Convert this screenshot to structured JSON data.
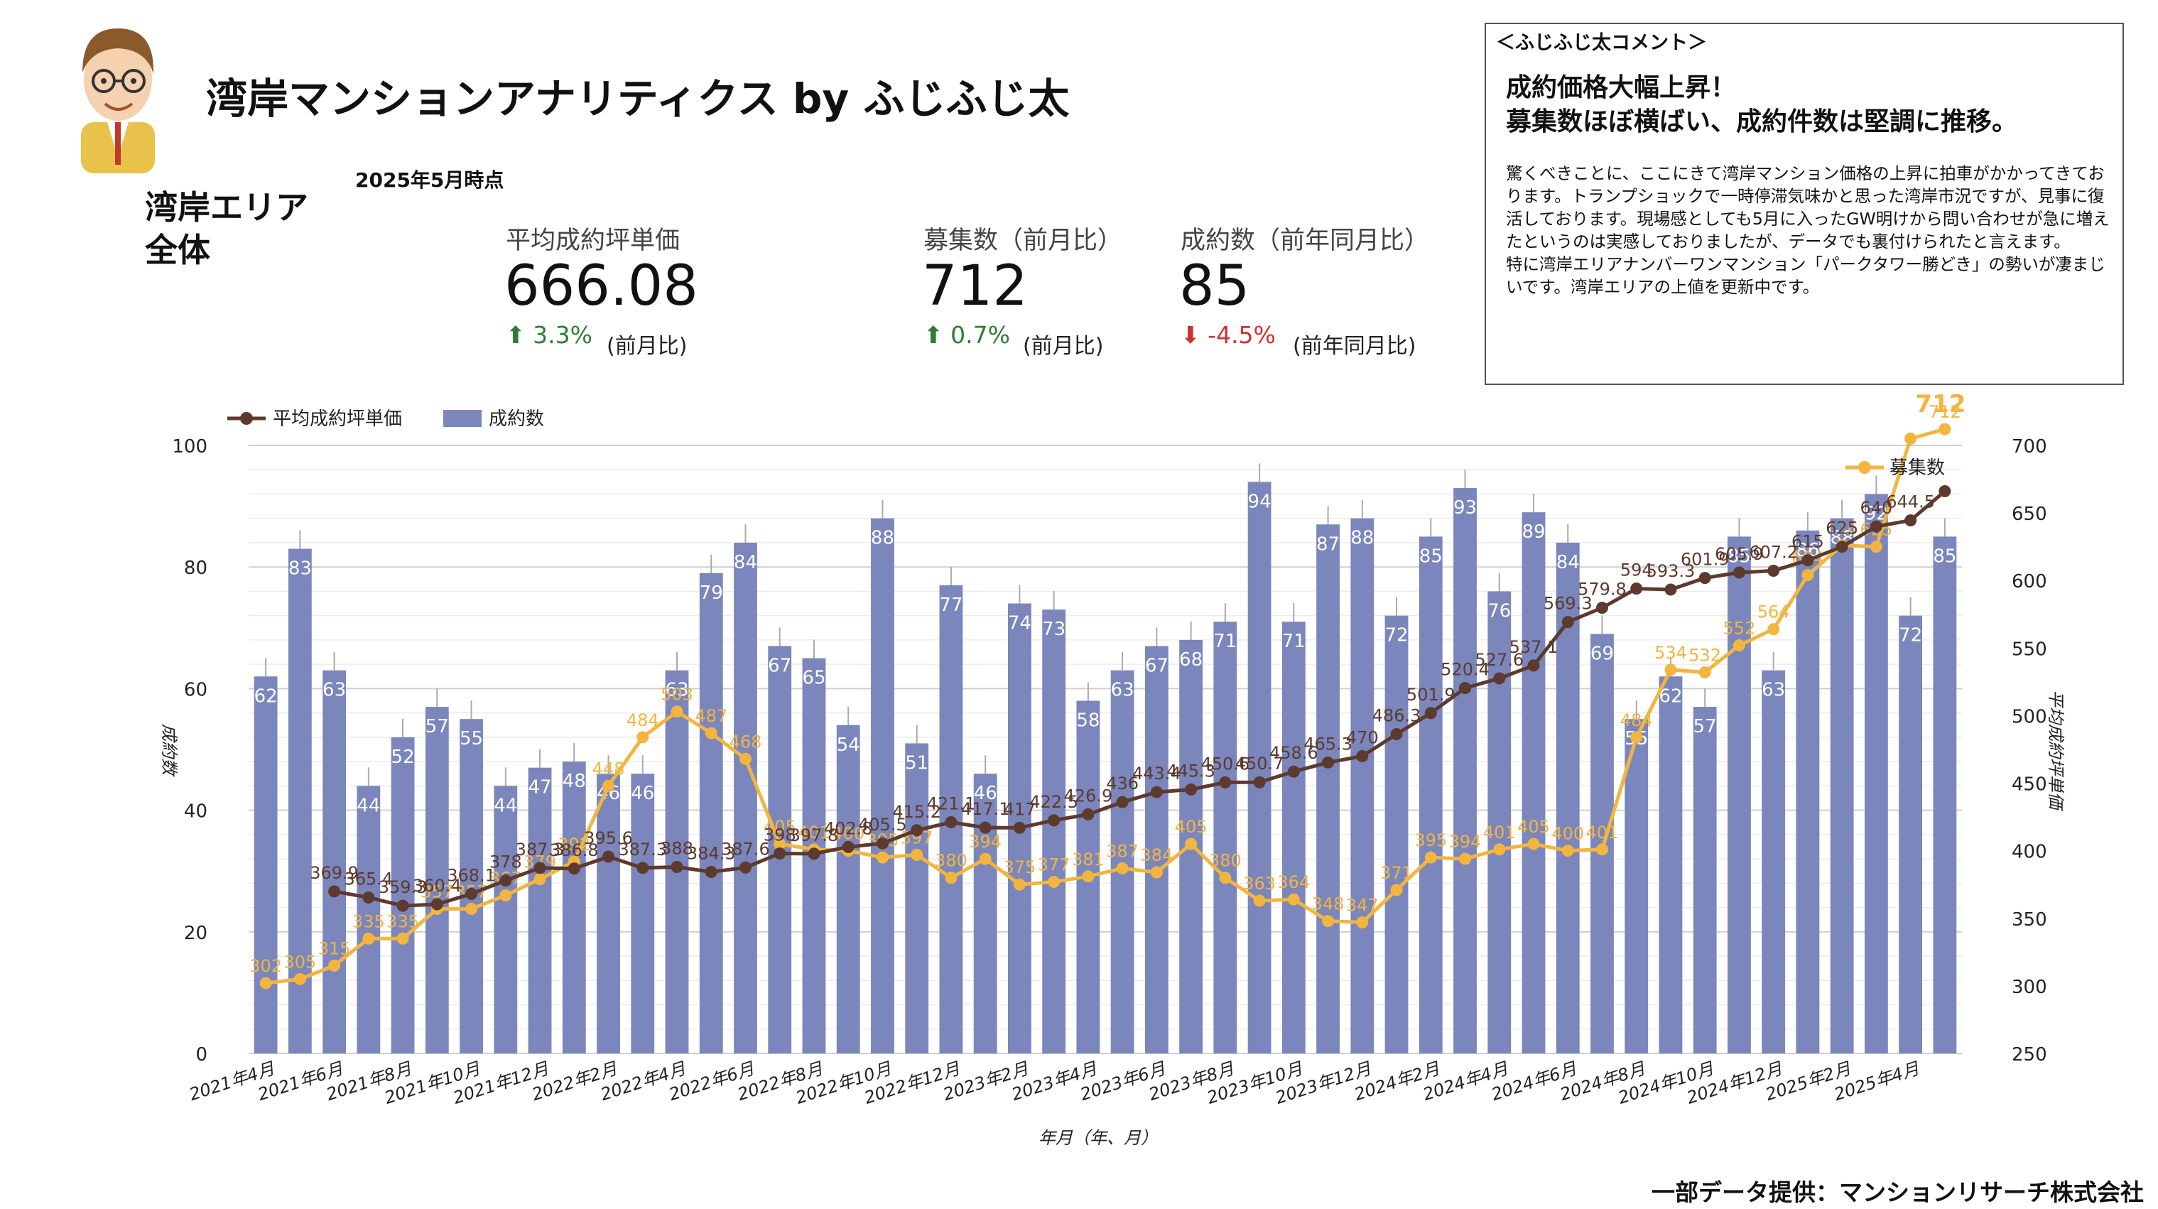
{
  "header": {
    "title": "湾岸マンションアナリティクス by ふじふじ太",
    "as_of": "2025年5月時点",
    "area_label": "湾岸エリア\n全体"
  },
  "kpis": [
    {
      "label": "平均成約坪単価",
      "value": "666.08",
      "arrow": "⬆",
      "delta": "3.3%",
      "suffix": "(前月比)",
      "direction": "up"
    },
    {
      "label": "募集数（前月比）",
      "value": "712",
      "arrow": "⬆",
      "delta": "0.7%",
      "suffix": "(前月比)",
      "direction": "up"
    },
    {
      "label": "成約数（前年同月比）",
      "value": "85",
      "arrow": "⬇",
      "delta": "-4.5%",
      "suffix": "(前年同月比)",
      "direction": "down"
    }
  ],
  "comment": {
    "label": "＜ふじふじ太コメント＞",
    "headline": "成約価格大幅上昇！\n募集数ほぼ横ばい、成約件数は堅調に推移。",
    "body": "驚くべきことに、ここにきて湾岸マンション価格の上昇に拍車がかかってきております。トランプショックで一時停滞気味かと思った湾岸市況ですが、見事に復活しております。現場感としても5月に入ったGW明けから問い合わせが急に増えたというのは実感しておりましたが、データでも裏付けられたと言えます。\n特に湾岸エリアナンバーワンマンション「パークタワー勝どき」の勢いが凄まじいです。湾岸エリアの上値を更新中です。"
  },
  "source": "一部データ提供：マンションリサーチ株式会社",
  "colors": {
    "bar": "#7a86bc",
    "price_line": "#5d3a2e",
    "listing_line": "#f2b53f",
    "bar_label": "#6f7cb4"
  },
  "chart_data": {
    "type": "bar",
    "x": [
      "2021年4月",
      "2021年5月",
      "2021年6月",
      "2021年7月",
      "2021年8月",
      "2021年9月",
      "2021年10月",
      "2021年11月",
      "2021年12月",
      "2022年1月",
      "2022年2月",
      "2022年3月",
      "2022年4月",
      "2022年5月",
      "2022年6月",
      "2022年7月",
      "2022年8月",
      "2022年9月",
      "2022年10月",
      "2022年11月",
      "2022年12月",
      "2023年1月",
      "2023年2月",
      "2023年3月",
      "2023年4月",
      "2023年5月",
      "2023年6月",
      "2023年7月",
      "2023年8月",
      "2023年9月",
      "2023年10月",
      "2023年11月",
      "2023年12月",
      "2024年1月",
      "2024年2月",
      "2024年3月",
      "2024年4月",
      "2024年5月",
      "2024年6月",
      "2024年7月",
      "2024年8月",
      "2024年9月",
      "2024年10月",
      "2024年11月",
      "2024年12月",
      "2025年1月",
      "2025年2月",
      "2025年3月",
      "2025年4月",
      "2025年5月"
    ],
    "x_tick_labels": [
      "2021年4月",
      "2021年6月",
      "2021年8月",
      "2021年10月",
      "2021年12月",
      "2022年2月",
      "2022年4月",
      "2022年6月",
      "2022年8月",
      "2022年10月",
      "2022年12月",
      "2023年2月",
      "2023年4月",
      "2023年6月",
      "2023年8月",
      "2023年10月",
      "2023年12月",
      "2024年2月",
      "2024年4月",
      "2024年6月",
      "2024年8月",
      "2024年10月",
      "2024年12月",
      "2025年2月",
      "2025年4月"
    ],
    "xlabel": "年月（年、月）",
    "ylabel_left": "成約数",
    "ylabel_right": "平均成約坪単価",
    "ylim_left": [
      0,
      100
    ],
    "yticks_left": [
      0,
      20,
      40,
      60,
      80,
      100
    ],
    "ylim_right": [
      250,
      700
    ],
    "yticks_right": [
      250,
      300,
      350,
      400,
      450,
      500,
      550,
      600,
      650,
      700
    ],
    "legend_position": "top-left",
    "grid": true,
    "series": [
      {
        "name": "成約数",
        "kind": "bar",
        "axis": "left",
        "values": [
          62,
          83,
          63,
          44,
          52,
          57,
          55,
          44,
          47,
          48,
          46,
          46,
          63,
          79,
          84,
          67,
          65,
          54,
          88,
          51,
          77,
          46,
          74,
          73,
          58,
          63,
          67,
          68,
          71,
          94,
          71,
          87,
          88,
          72,
          85,
          93,
          76,
          89,
          84,
          69,
          55,
          62,
          57,
          85,
          63,
          86,
          88,
          92,
          72,
          85
        ]
      },
      {
        "name": "平均成約坪単価",
        "kind": "line",
        "axis": "right",
        "values": [
          null,
          null,
          369.9,
          365.4,
          359.3,
          360.4,
          368.1,
          378,
          387.3,
          386.8,
          395.6,
          387.3,
          388,
          384.3,
          387.6,
          398,
          397.8,
          402.8,
          405.5,
          415.2,
          421.1,
          417.1,
          417,
          422.5,
          426.9,
          436,
          443.4,
          445.3,
          450.6,
          450.7,
          458.6,
          465.3,
          470,
          486.3,
          501.9,
          520.4,
          527.6,
          537.1,
          569.3,
          579.8,
          594,
          593.3,
          601.9,
          605.9,
          607.2,
          615,
          625,
          640,
          644.5,
          666.08
        ],
        "labels": [
          "",
          "",
          "369.9",
          "365.4",
          "359.3",
          "360.4",
          "368.1",
          "378",
          "387.3",
          "386.8",
          "395.6",
          "387.3",
          "388",
          "384.3",
          "387.6",
          "398",
          "397.8",
          "402.8",
          "405.5",
          "415.2",
          "421.1",
          "417.1",
          "417",
          "422.5",
          "426.9",
          "436",
          "443.4",
          "445.3",
          "450.6",
          "450.7",
          "458.6",
          "465.3",
          "470",
          "486.3",
          "501.9",
          "520.4",
          "527.6",
          "537.1",
          "569.3",
          "579.8",
          "594",
          "593.3",
          "601.9",
          "605.9",
          "607.2",
          "615",
          "625",
          "640",
          "644.5",
          ""
        ]
      },
      {
        "name": "募集数",
        "kind": "line",
        "axis": "right",
        "values": [
          302,
          305,
          315,
          335,
          335,
          357,
          357,
          367,
          379,
          392,
          448,
          484,
          503,
          487,
          468,
          405,
          401,
          400,
          395,
          397,
          380,
          394,
          375,
          377,
          381,
          387,
          384,
          405,
          380,
          363,
          364,
          348,
          347,
          371,
          395,
          394,
          401,
          405,
          400,
          401,
          484,
          534,
          532,
          552,
          564,
          604,
          626,
          625,
          705,
          712
        ],
        "labels": [
          "302",
          "305",
          "315",
          "335",
          "335",
          "357",
          "357",
          "367",
          "379",
          "392",
          "448",
          "484",
          "503",
          "487",
          "468",
          "405",
          "401",
          "400",
          "395",
          "397",
          "380",
          "394",
          "375",
          "377",
          "381",
          "387",
          "384",
          "405",
          "380",
          "363",
          "364",
          "348",
          "347",
          "371",
          "395",
          "394",
          "401",
          "405",
          "400",
          "401",
          "484",
          "534",
          "532",
          "552",
          "564",
          "604",
          "626",
          "625",
          "",
          "712"
        ]
      }
    ]
  }
}
